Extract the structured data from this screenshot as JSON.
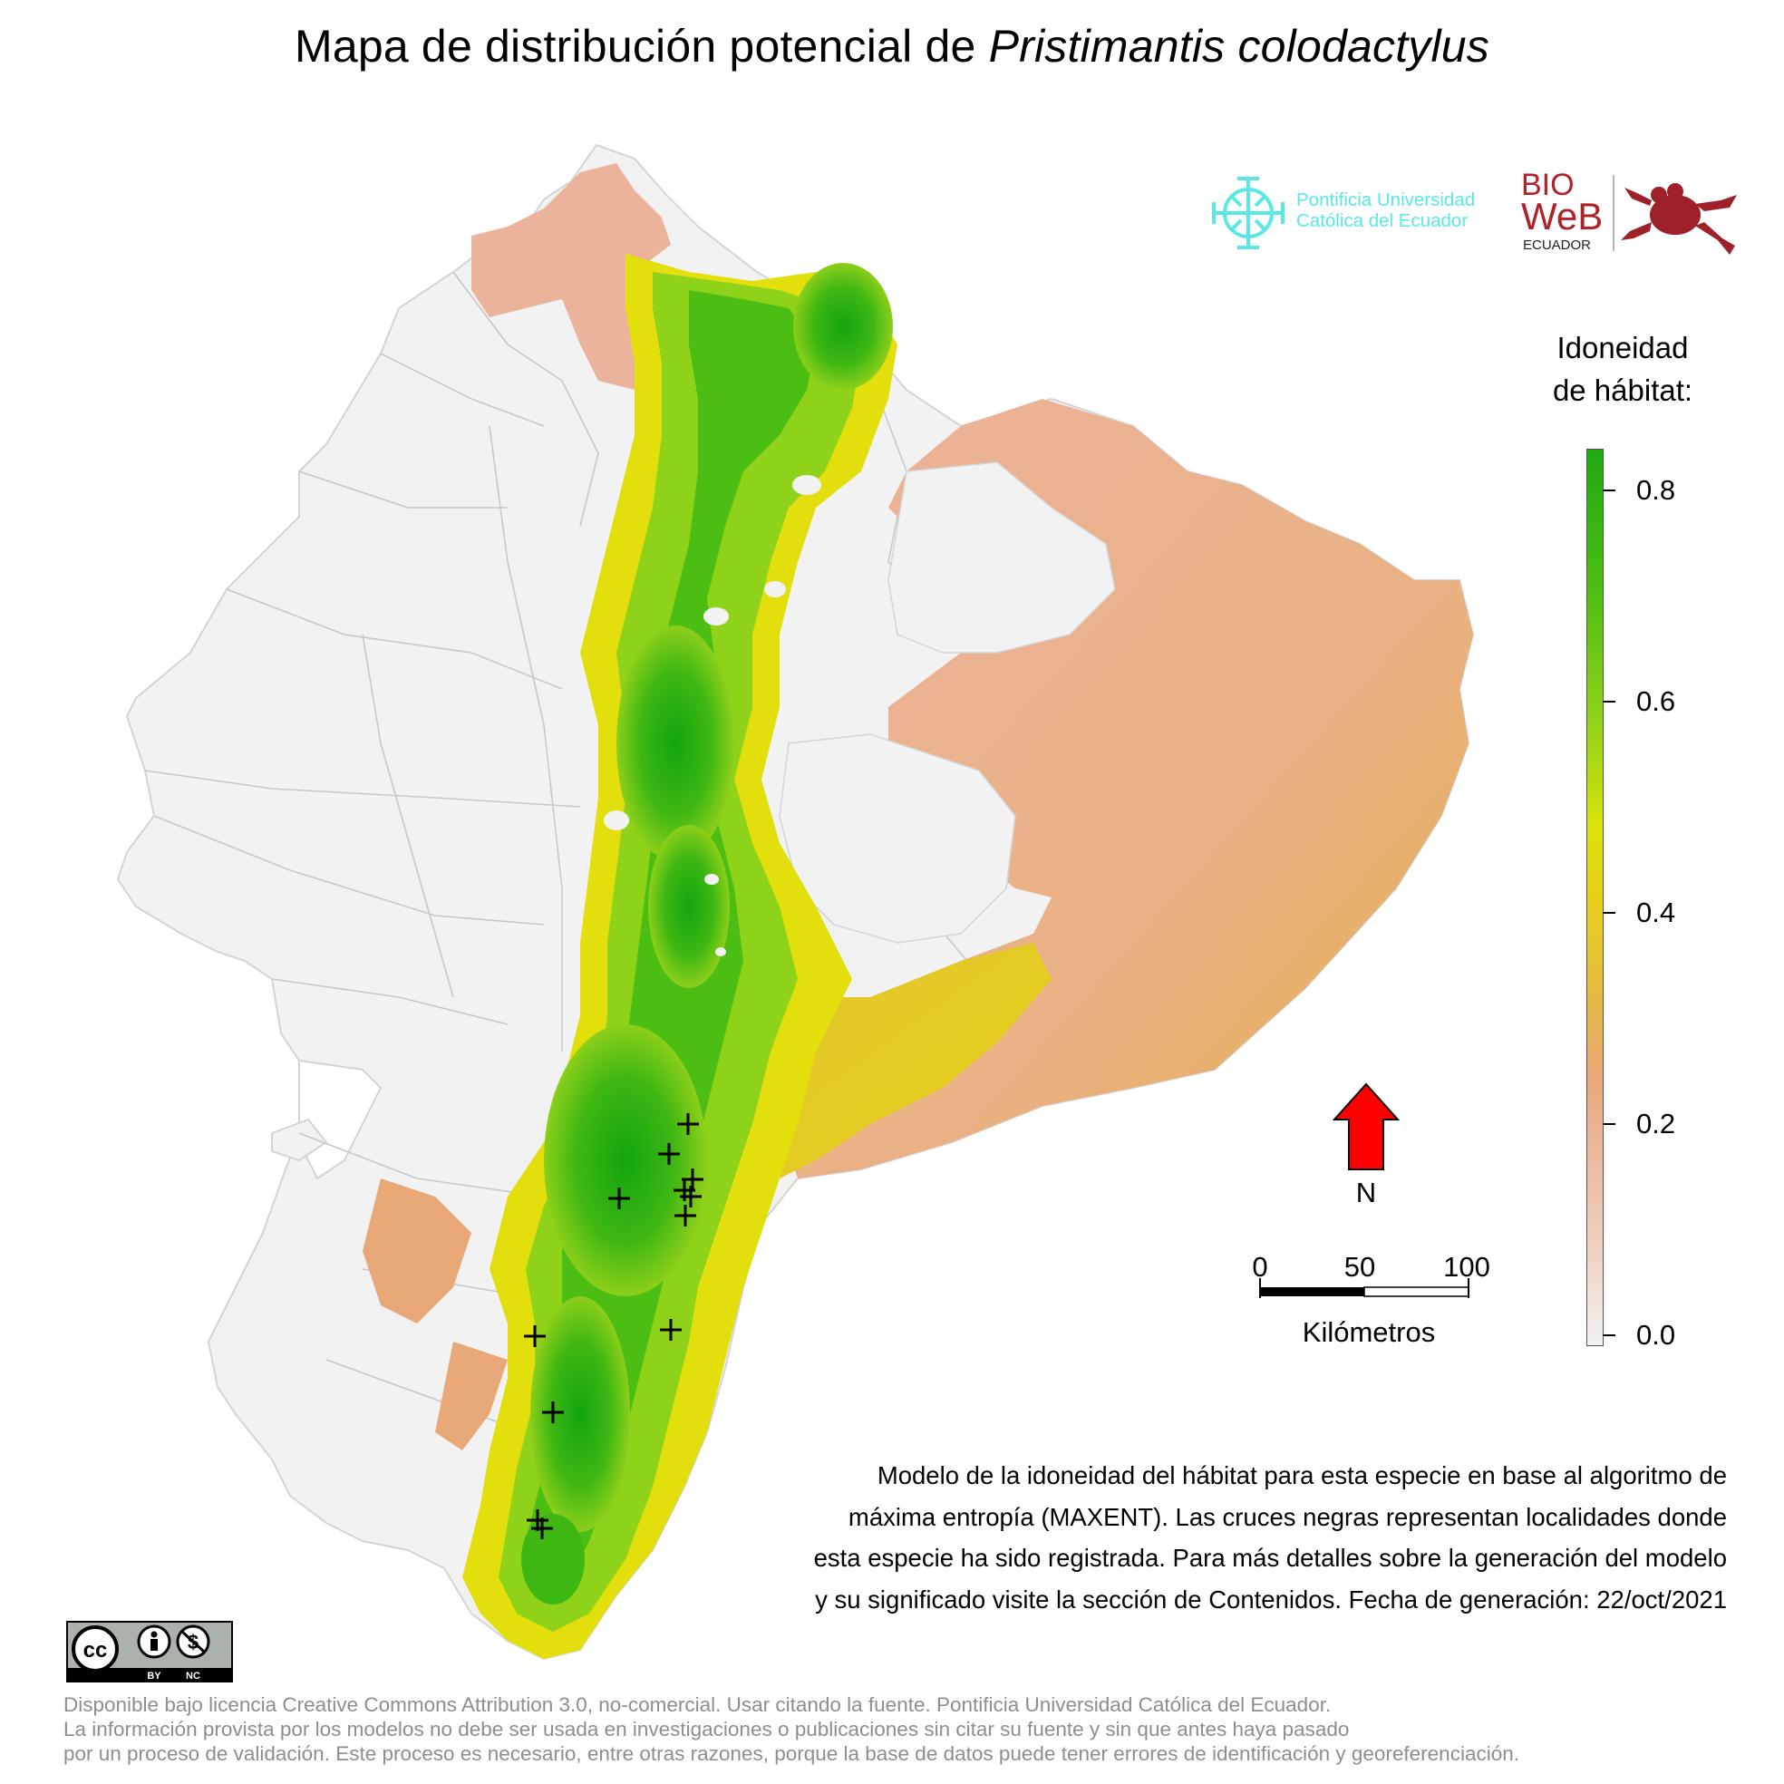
{
  "title": {
    "prefix": "Mapa de distribución potencial de ",
    "species": "Pristimantis colodactylus"
  },
  "legend": {
    "title_line1": "Idoneidad",
    "title_line2": "de hábitat:",
    "ticks": [
      "0.8",
      "0.6",
      "0.4",
      "0.2",
      "0.0"
    ],
    "range": [
      0.0,
      0.85
    ],
    "colors": {
      "high": "#1faa10",
      "mid": "#e2df0c",
      "low": "#e9a878",
      "none": "#f2f2f2"
    }
  },
  "north_arrow": {
    "label": "N",
    "color": "#ff0000"
  },
  "scale_bar": {
    "labels": [
      "0",
      "50",
      "100"
    ],
    "unit": "Kilómetros"
  },
  "logos": {
    "puce_line1": "Pontificia Universidad",
    "puce_line2": "Católica del Ecuador",
    "bioweb_bio": "BIO",
    "bioweb_web": "WeB",
    "bioweb_country": "ECUADOR",
    "cc_by": "BY",
    "cc_nc": "NC"
  },
  "description": [
    "Modelo de la idoneidad del hábitat para esta especie en base al algoritmo de",
    "máxima entropía (MAXENT). Las cruces negras representan localidades donde",
    "esta especie ha sido registrada. Para más detalles sobre la generación del modelo",
    "y su significado visite la sección de Contenidos. Fecha de generación: 22/oct/2021"
  ],
  "footer": [
    "Disponible bajo licencia Creative Commons Attribution 3.0, no-comercial. Usar citando la fuente. Pontificia Universidad Católica del Ecuador.",
    "La información provista por los modelos no debe ser usada en investigaciones o publicaciones sin citar su fuente y sin que antes haya pasado",
    "por un proceso de validación. Este proceso es necesario, entre otras razones, porque la base de datos puede tener errores de identificación y georeferenciación."
  ],
  "occurrence_count": 12
}
